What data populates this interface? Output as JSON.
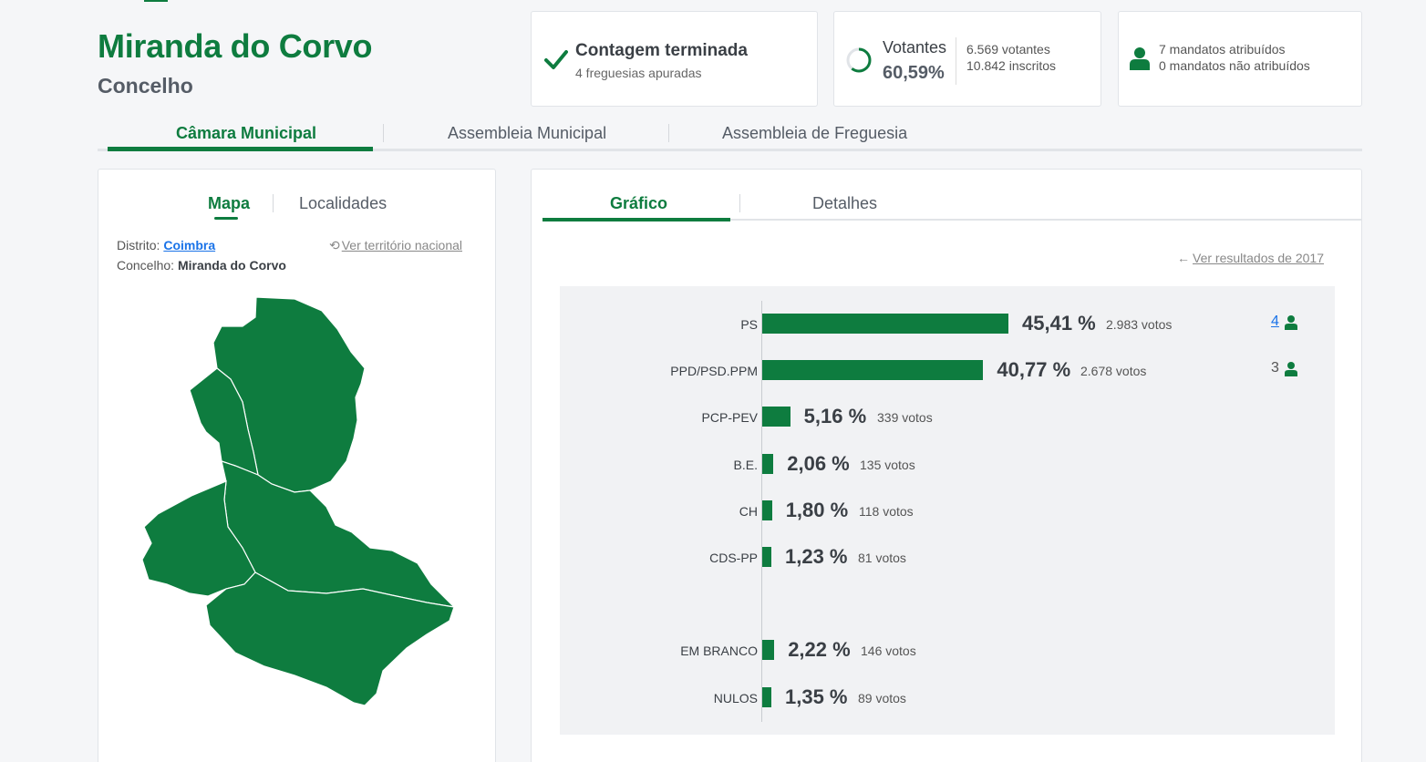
{
  "header": {
    "title": "Miranda do Corvo",
    "subtitle": "Concelho"
  },
  "status_card": {
    "icon": "check-icon",
    "title": "Contagem terminada",
    "subtitle": "4 freguesias apuradas"
  },
  "votes_card": {
    "label": "Votantes",
    "turnout": "60,59%",
    "turnout_fraction": 0.6059,
    "voters": "6.569 votantes",
    "registered": "10.842 inscritos"
  },
  "mandates_card": {
    "icon": "person-icon",
    "assigned": "7 mandatos atribuídos",
    "unassigned": "0 mandatos não atribuídos"
  },
  "main_tabs": [
    {
      "label": "Câmara Municipal",
      "active": true
    },
    {
      "label": "Assembleia Municipal",
      "active": false
    },
    {
      "label": "Assembleia de Freguesia",
      "active": false
    }
  ],
  "left_panel": {
    "tabs": [
      {
        "label": "Mapa",
        "active": true
      },
      {
        "label": "Localidades",
        "active": false
      }
    ],
    "district_label": "Distrito:",
    "district_value": "Coimbra",
    "municipality_label": "Concelho:",
    "municipality_value": "Miranda do Corvo",
    "national_link": "Ver território nacional",
    "map_color": "#0e7c3f"
  },
  "right_panel": {
    "tabs": [
      {
        "label": "Gráfico",
        "active": true
      },
      {
        "label": "Detalhes",
        "active": false
      }
    ],
    "previous_results_link": "Ver resultados de 2017"
  },
  "colors": {
    "accent": "#0e7c3f",
    "link": "#1a73e8"
  },
  "chart_data": {
    "type": "bar",
    "orientation": "horizontal",
    "unit": "%",
    "xlim": [
      0,
      100
    ],
    "rows": [
      {
        "label": "PS",
        "value": 45.41,
        "pct": "45,41 %",
        "votes": "2.983 votos",
        "seats": "4",
        "seats_link": true
      },
      {
        "label": "PPD/PSD.PPM",
        "value": 40.77,
        "pct": "40,77 %",
        "votes": "2.678 votos",
        "seats": "3",
        "seats_link": false
      },
      {
        "label": "PCP-PEV",
        "value": 5.16,
        "pct": "5,16 %",
        "votes": "339 votos",
        "seats": "",
        "seats_link": false
      },
      {
        "label": "B.E.",
        "value": 2.06,
        "pct": "2,06 %",
        "votes": "135 votos",
        "seats": "",
        "seats_link": false
      },
      {
        "label": "CH",
        "value": 1.8,
        "pct": "1,80 %",
        "votes": "118 votos",
        "seats": "",
        "seats_link": false
      },
      {
        "label": "CDS-PP",
        "value": 1.23,
        "pct": "1,23 %",
        "votes": "81 votos",
        "seats": "",
        "seats_link": false
      },
      {
        "label": "EM BRANCO",
        "value": 2.22,
        "pct": "2,22 %",
        "votes": "146 votos",
        "seats": "",
        "seats_link": false
      },
      {
        "label": "NULOS",
        "value": 1.35,
        "pct": "1,35 %",
        "votes": "89 votos",
        "seats": "",
        "seats_link": false
      }
    ]
  }
}
